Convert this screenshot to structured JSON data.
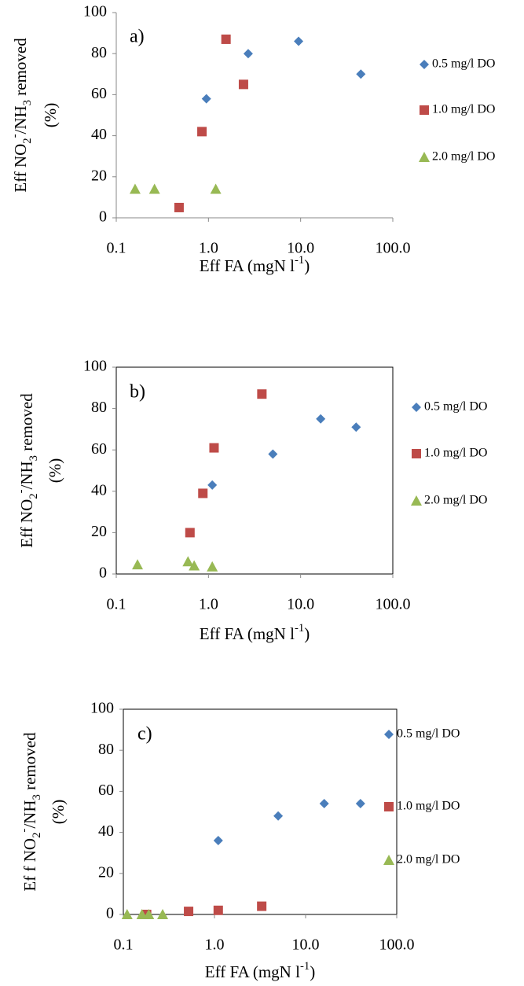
{
  "chart_data": [
    {
      "type": "scatter",
      "annotation": "a)",
      "frame": false,
      "xscale": "log",
      "xlabel": [
        "Eff FA (mgN l",
        "-1",
        ")"
      ],
      "xlabel_styles": [
        "normal",
        "super",
        "normal"
      ],
      "ylabel": [
        "Eff NO",
        "2",
        "-",
        "/NH",
        "3",
        " removed"
      ],
      "ylabel_styles": [
        "normal",
        "sub",
        "super",
        "normal",
        "sub",
        "normal"
      ],
      "ylabel2": "(%)",
      "xlim": [
        0.1,
        100
      ],
      "xticks": [
        0.1,
        {
          "value": 1,
          "label": "1.0"
        },
        {
          "value": 10,
          "label": "10.0"
        },
        {
          "value": 100,
          "label": "100.0"
        }
      ],
      "ylim": [
        0,
        100
      ],
      "yticks": [
        0,
        20,
        40,
        60,
        80,
        100
      ],
      "series": [
        {
          "name": "0.5 mg/l DO",
          "color": "#4a7ebb",
          "marker": "diamond",
          "x": [
            0.95,
            2.7,
            9.5,
            45
          ],
          "values": [
            58,
            80,
            86,
            70
          ]
        },
        {
          "name": "1.0 mg/l DO",
          "color": "#be4b48",
          "marker": "square",
          "x": [
            0.48,
            0.85,
            1.55,
            2.4
          ],
          "values": [
            5,
            42,
            87,
            65
          ]
        },
        {
          "name": "2.0 mg/l DO",
          "color": "#98b954",
          "marker": "triangle",
          "x": [
            0.16,
            0.26,
            1.2
          ],
          "values": [
            14,
            14,
            14
          ]
        }
      ]
    },
    {
      "type": "scatter",
      "annotation": "b)",
      "frame": true,
      "xscale": "log",
      "xlabel": [
        "Eff FA (mgN l",
        "-1",
        ")"
      ],
      "xlabel_styles": [
        "normal",
        "super",
        "normal"
      ],
      "ylabel": [
        "Eff NO",
        "2",
        "-",
        "/NH",
        "3",
        " removed"
      ],
      "ylabel_styles": [
        "normal",
        "sub",
        "super",
        "normal",
        "sub",
        "normal"
      ],
      "ylabel2": "(%)",
      "xlim": [
        0.1,
        100
      ],
      "xticks": [
        0.1,
        {
          "value": 1,
          "label": "1.0"
        },
        {
          "value": 10,
          "label": "10.0"
        },
        {
          "value": 100,
          "label": "100.0"
        }
      ],
      "ylim": [
        0,
        100
      ],
      "yticks": [
        0,
        20,
        40,
        60,
        80,
        100
      ],
      "series": [
        {
          "name": "0.5 mg/l DO",
          "color": "#4a7ebb",
          "marker": "diamond",
          "x": [
            1.1,
            5.0,
            16.5,
            40
          ],
          "values": [
            43,
            58,
            75,
            71
          ]
        },
        {
          "name": "1.0 mg/l DO",
          "color": "#be4b48",
          "marker": "square",
          "x": [
            0.63,
            0.87,
            1.15,
            3.8
          ],
          "values": [
            20,
            39,
            61,
            87
          ]
        },
        {
          "name": "2.0 mg/l DO",
          "color": "#98b954",
          "marker": "triangle",
          "x": [
            0.17,
            0.6,
            0.7,
            1.1
          ],
          "values": [
            4.5,
            6,
            4,
            3.5
          ]
        }
      ]
    },
    {
      "type": "scatter",
      "annotation": "c)",
      "frame": true,
      "xscale": "log",
      "xlabel": [
        "Eff FA (mgN l",
        "-1",
        ")"
      ],
      "xlabel_styles": [
        "normal",
        "super",
        "normal"
      ],
      "ylabel": [
        "Ef f NO",
        "2",
        "-",
        "/NH",
        "3",
        " removed"
      ],
      "ylabel_styles": [
        "normal",
        "sub",
        "super",
        "normal",
        "sub",
        "normal"
      ],
      "ylabel2": "(%)",
      "xlim": [
        0.1,
        100
      ],
      "xticks": [
        0.1,
        {
          "value": 1,
          "label": "1.0"
        },
        {
          "value": 10,
          "label": "10.0"
        },
        {
          "value": 100,
          "label": "100.0"
        }
      ],
      "ylim": [
        0,
        100
      ],
      "yticks": [
        0,
        20,
        40,
        60,
        80,
        100
      ],
      "series": [
        {
          "name": "0.5 mg/l DO",
          "color": "#4a7ebb",
          "marker": "diamond",
          "x": [
            1.1,
            5.0,
            16,
            40
          ],
          "values": [
            36,
            48,
            54,
            54
          ]
        },
        {
          "name": "1.0 mg/l DO",
          "color": "#be4b48",
          "marker": "square",
          "x": [
            0.18,
            0.52,
            1.1,
            3.3
          ],
          "values": [
            0,
            1.5,
            2,
            4
          ]
        },
        {
          "name": "2.0 mg/l DO",
          "color": "#98b954",
          "marker": "triangle",
          "x": [
            0.11,
            0.16,
            0.19,
            0.27
          ],
          "values": [
            0,
            0,
            0,
            0
          ]
        }
      ]
    }
  ]
}
